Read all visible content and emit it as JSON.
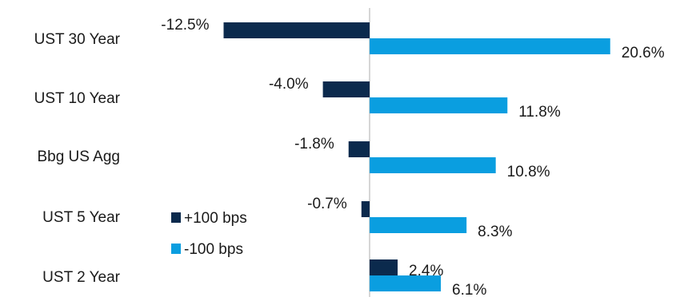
{
  "chart_data": {
    "type": "bar",
    "orientation": "horizontal",
    "categories": [
      "UST 30 Year",
      "UST 10 Year",
      "Bbg US Agg",
      "UST 5 Year",
      "UST 2 Year"
    ],
    "series": [
      {
        "name": "+100 bps",
        "color": "#0b2a4d",
        "values": [
          -12.5,
          -4.0,
          -1.8,
          -0.7,
          2.4
        ],
        "labels": [
          "-12.5%",
          "-4.0%",
          "-1.8%",
          "-0.7%",
          "2.4%"
        ]
      },
      {
        "name": "-100 bps",
        "color": "#0a9ee0",
        "values": [
          20.6,
          11.8,
          10.8,
          8.3,
          6.1
        ],
        "labels": [
          "20.6%",
          "11.8%",
          "10.8%",
          "8.3%",
          "6.1%"
        ]
      }
    ],
    "xlim": [
      -20,
      30
    ],
    "grid": false,
    "legend": "center-left"
  }
}
